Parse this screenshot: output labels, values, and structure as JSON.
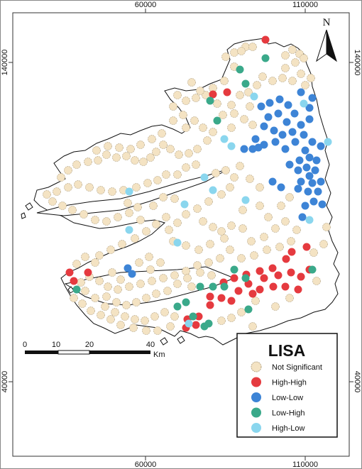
{
  "axis_ticks": {
    "x": [
      "60000",
      "110000"
    ],
    "y": [
      "140000",
      "40000"
    ]
  },
  "north_arrow": {
    "label": "N"
  },
  "scale_bar": {
    "ticks": [
      "0",
      "10",
      "20",
      "40"
    ],
    "unit": "Km"
  },
  "legend": {
    "title": "LISA",
    "entries": [
      {
        "key": "ns",
        "label": "Not Significant",
        "color": "#f4e3c3"
      },
      {
        "key": "hh",
        "label": "High-High",
        "color": "#e53a3f"
      },
      {
        "key": "ll",
        "label": "Low-Low",
        "color": "#3d84d6"
      },
      {
        "key": "lh",
        "label": "Low-High",
        "color": "#3aa98a"
      },
      {
        "key": "hl",
        "label": "High-Low",
        "color": "#8ad6ee"
      }
    ]
  }
}
